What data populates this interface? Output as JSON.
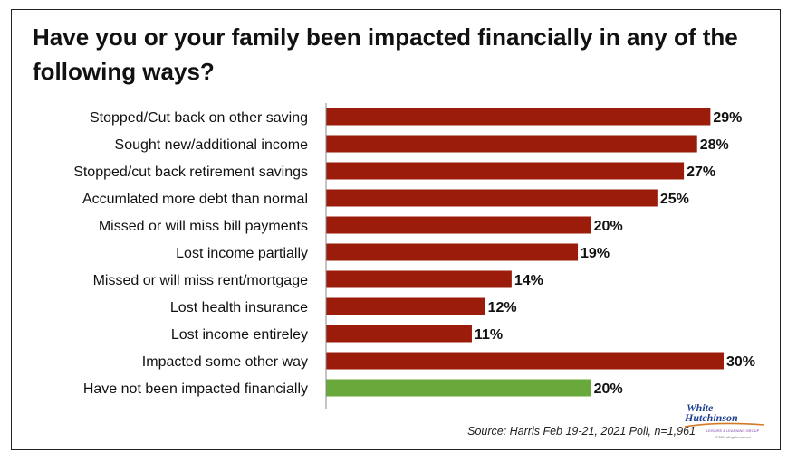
{
  "title": "Have you or your family been impacted financially in any of the following ways?",
  "source": "Source: Harris Feb 19-21, 2021 Poll, n=1,961",
  "logo": {
    "line1": "White",
    "line2": "Hutchinson",
    "tagline": "LEISURE & LEARNING GROUP",
    "copyright": "© 2021 all rights reserved"
  },
  "colors": {
    "bar": "#9b1c0b",
    "highlight_bar": "#69a83a",
    "text": "#111111"
  },
  "chart_data": {
    "type": "bar",
    "orientation": "horizontal",
    "categories": [
      "Stopped/Cut back on other saving",
      "Sought new/additional income",
      "Stopped/cut back retirement savings",
      "Accumlated more debt than normal",
      "Missed or will miss bill payments",
      "Lost income partially",
      "Missed or will miss rent/mortgage",
      "Lost health insurance",
      "Lost income entireley",
      "Impacted some other way",
      "Have not been impacted financially"
    ],
    "values": [
      29,
      28,
      27,
      25,
      20,
      19,
      14,
      12,
      11,
      30,
      20
    ],
    "data_labels": [
      "29%",
      "28%",
      "27%",
      "25%",
      "20%",
      "19%",
      "14%",
      "12%",
      "11%",
      "30%",
      "20%"
    ],
    "highlighted_category": "Have not been impacted financially",
    "xlim": [
      0,
      30
    ],
    "unit": "%"
  }
}
